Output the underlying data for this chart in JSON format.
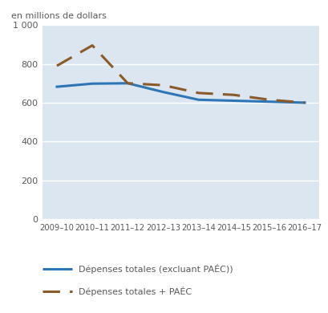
{
  "x_labels": [
    "2009–10",
    "2010–11",
    "2011–12",
    "2012–13",
    "2013–14",
    "2014–15",
    "2015–16",
    "2016–17"
  ],
  "x_values": [
    0,
    1,
    2,
    3,
    4,
    5,
    6,
    7
  ],
  "y_total": [
    682,
    698,
    700,
    655,
    615,
    610,
    605,
    600
  ],
  "y_total_paec": [
    790,
    895,
    700,
    690,
    650,
    640,
    615,
    600
  ],
  "line_color": "#2e75b6",
  "dashed_color": "#8b5a2b",
  "background_color": "#dce6f1",
  "ylim": [
    0,
    1000
  ],
  "ytick_vals": [
    0,
    200,
    400,
    600,
    800,
    1000
  ],
  "ytick_labels": [
    "0",
    "200",
    "400",
    "600",
    "800",
    "1 000"
  ],
  "ylabel": "en millions de dollars",
  "legend_solid": "Dépenses totales (excluant PAÉC))",
  "legend_dashed": "Dépenses totales + PAÉC",
  "grid_color": "#ffffff",
  "text_color": "#595959",
  "fig_bg": "#ffffff"
}
